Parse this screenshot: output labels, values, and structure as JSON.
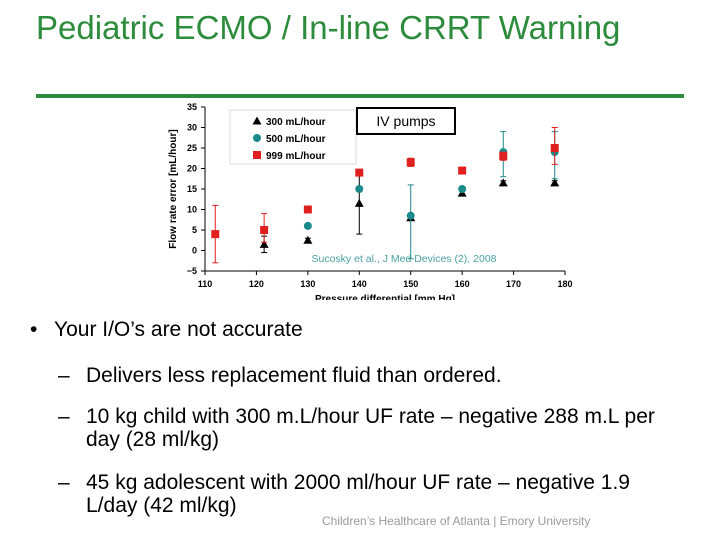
{
  "slide": {
    "title": "Pediatric ECMO / In-line CRRT Warning",
    "footer": "Children’s Healthcare of Atlanta | Emory University",
    "accent_color": "#2c8c3c"
  },
  "bullets": {
    "main": "Your I/O’s are not accurate",
    "bullet_glyph": "•",
    "dash_glyph": "–",
    "subs": [
      "Delivers less replacement fluid than ordered.",
      "10 kg child with 300 m.L/hour UF rate – negative 288 m.L per day (28 ml/kg)",
      "45 kg adolescent with 2000 ml/hour UF rate – negative 1.9 L/day (42 ml/kg)"
    ]
  },
  "chart_data": {
    "type": "scatter",
    "xlabel": "Pressure differential [mm Hg]",
    "ylabel": "Flow rate error [mL/hour]",
    "xlim": [
      110,
      180
    ],
    "ylim": [
      -5,
      35
    ],
    "xticks": [
      110,
      120,
      130,
      140,
      150,
      160,
      170,
      180
    ],
    "yticks": [
      -5,
      0,
      5,
      10,
      15,
      20,
      25,
      30,
      35
    ],
    "grid": false,
    "legend": "top-left",
    "annotations": [
      "IV pumps",
      "Sucosky et al., J Med Devices (2), 2008"
    ],
    "series": [
      {
        "name": "300 mL/hour",
        "marker": "triangle",
        "color": "#000000",
        "points": [
          {
            "x": 121.5,
            "y": 1.5,
            "lo": -0.5,
            "hi": 3.5
          },
          {
            "x": 130,
            "y": 2.5,
            "lo": 2,
            "hi": 3
          },
          {
            "x": 140,
            "y": 11.5,
            "lo": 4,
            "hi": 19
          },
          {
            "x": 150,
            "y": 8,
            "lo": 7.5,
            "hi": 8.5
          },
          {
            "x": 160,
            "y": 14,
            "lo": 13.5,
            "hi": 14.5
          },
          {
            "x": 168,
            "y": 16.5,
            "lo": 16,
            "hi": 17
          },
          {
            "x": 178,
            "y": 16.5,
            "lo": 16,
            "hi": 17
          }
        ]
      },
      {
        "name": "500 mL/hour",
        "marker": "circle",
        "color": "#1a8a8a",
        "points": [
          {
            "x": 130,
            "y": 6,
            "lo": 5.5,
            "hi": 6.5
          },
          {
            "x": 140,
            "y": 15,
            "lo": 14.5,
            "hi": 15.5
          },
          {
            "x": 150,
            "y": 8.5,
            "lo": -2,
            "hi": 16
          },
          {
            "x": 160,
            "y": 15,
            "lo": 14.5,
            "hi": 15.5
          },
          {
            "x": 168,
            "y": 24,
            "lo": 18,
            "hi": 29
          },
          {
            "x": 178,
            "y": 24,
            "lo": 17.5,
            "hi": 29
          }
        ]
      },
      {
        "name": "999 mL/hour",
        "marker": "square",
        "color": "#e02020",
        "points": [
          {
            "x": 112,
            "y": 4,
            "lo": -3,
            "hi": 11
          },
          {
            "x": 121.5,
            "y": 5,
            "lo": 2,
            "hi": 9
          },
          {
            "x": 130,
            "y": 10,
            "lo": 9.5,
            "hi": 10.5
          },
          {
            "x": 140,
            "y": 19,
            "lo": 18.5,
            "hi": 19.5
          },
          {
            "x": 150,
            "y": 21.5,
            "lo": 20.5,
            "hi": 22.5
          },
          {
            "x": 160,
            "y": 19.5,
            "lo": 19,
            "hi": 20
          },
          {
            "x": 168,
            "y": 23,
            "lo": 22,
            "hi": 24
          },
          {
            "x": 178,
            "y": 25,
            "lo": 21,
            "hi": 30
          }
        ]
      }
    ]
  }
}
